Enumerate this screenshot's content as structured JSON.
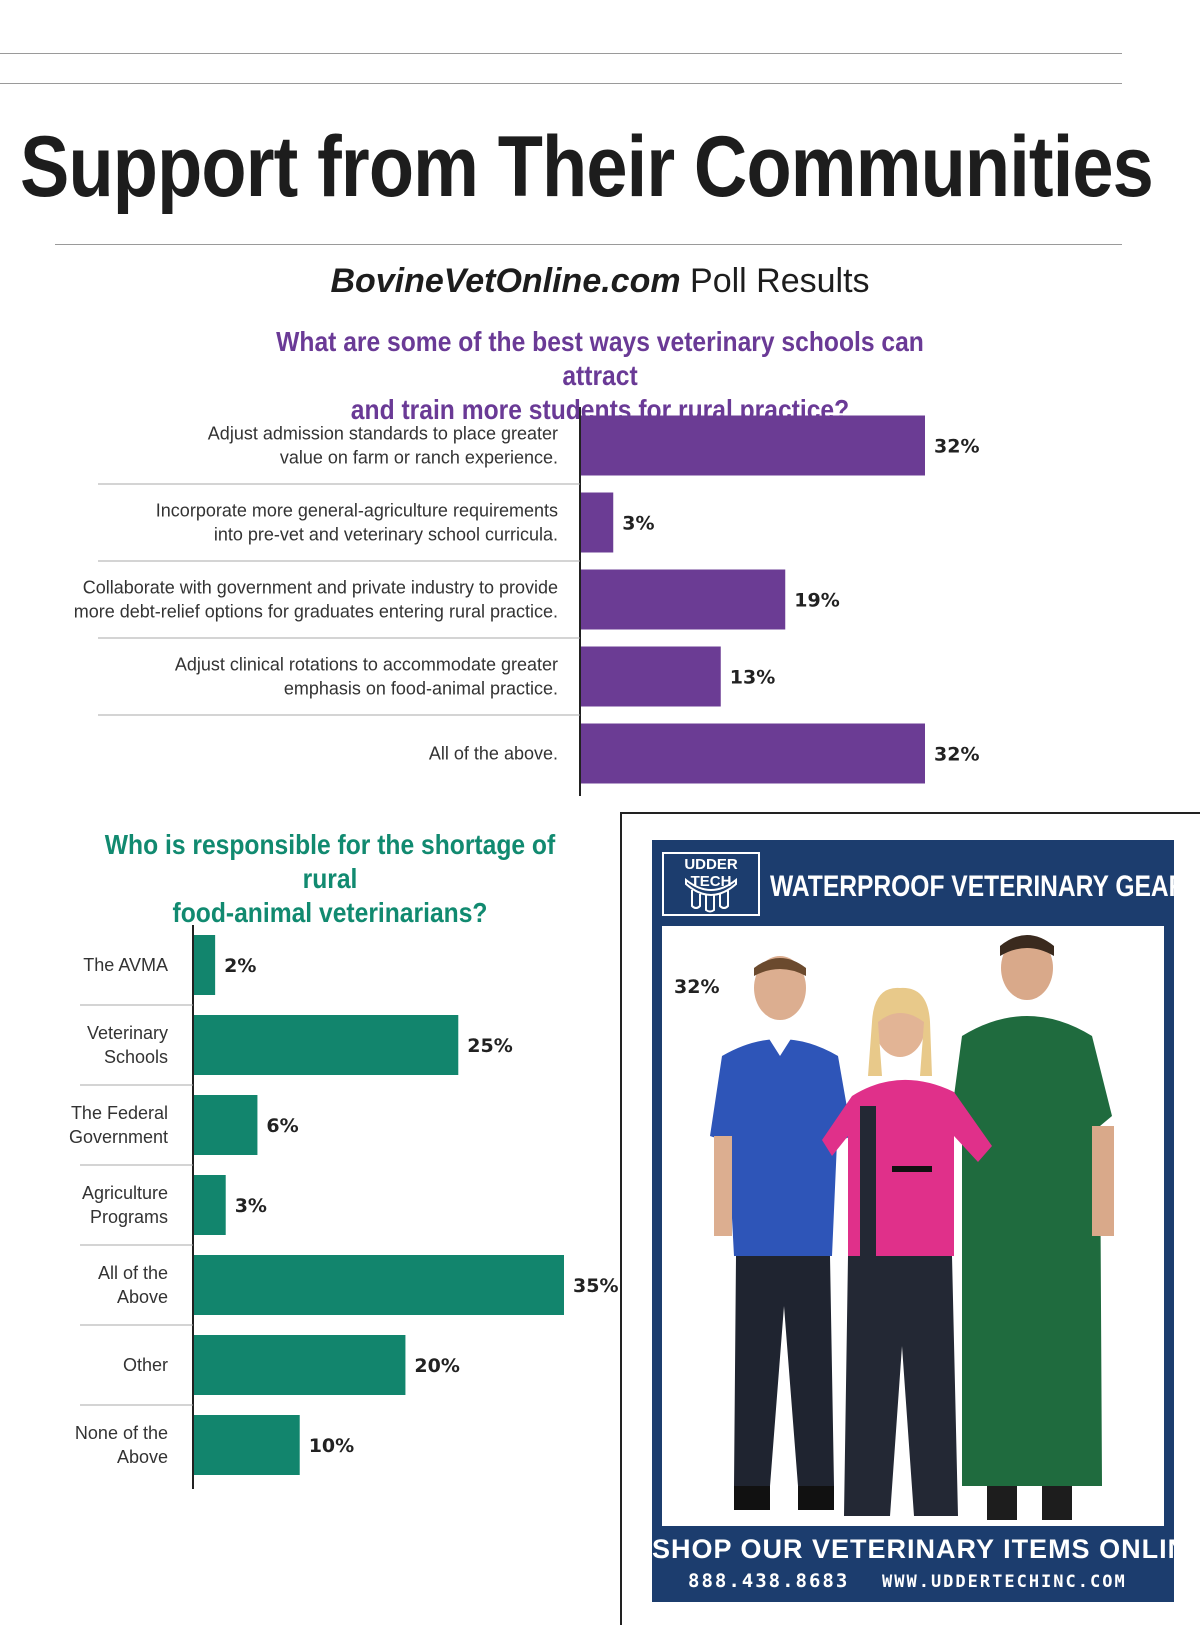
{
  "page": {
    "title": "Support from Their Communities",
    "poll_brand": "BovineVetOnline.com",
    "poll_suffix": " Poll Results"
  },
  "chart_data": [
    {
      "type": "bar",
      "orientation": "horizontal",
      "title": "What are some of the best ways veterinary schools can attract and train more students for rural practice?",
      "title_lines": [
        "What are some of the best ways veterinary schools can attract",
        "and train more students for rural practice?"
      ],
      "categories": [
        [
          "Adjust admission standards to place greater",
          "value on farm or ranch experience."
        ],
        [
          "Incorporate more general-agriculture requirements",
          "into pre-vet and veterinary school curricula."
        ],
        [
          "Collaborate with government and private industry to provide",
          "more debt-relief options for graduates entering rural practice."
        ],
        [
          "Adjust clinical rotations to accommodate greater",
          "emphasis on food-animal practice."
        ],
        [
          "All of the above."
        ]
      ],
      "values": [
        32,
        3,
        19,
        13,
        32
      ],
      "value_labels": [
        "32%",
        "3%",
        "19%",
        "13%",
        "32%"
      ],
      "unit": "%",
      "xlim": [
        0,
        32
      ],
      "color": "#6b3c94"
    },
    {
      "type": "bar",
      "orientation": "horizontal",
      "title": "Who is responsible for the shortage of rural food-animal veterinarians?",
      "title_lines": [
        "Who is responsible for the shortage of rural",
        "food-animal veterinarians?"
      ],
      "categories": [
        [
          "The AVMA"
        ],
        [
          "Veterinary",
          "Schools"
        ],
        [
          "The Federal",
          "Government"
        ],
        [
          "Agriculture",
          "Programs"
        ],
        [
          "All of the",
          "Above"
        ],
        [
          "Other"
        ],
        [
          "None of the",
          "Above"
        ]
      ],
      "values": [
        2,
        25,
        6,
        3,
        35,
        20,
        10
      ],
      "value_labels": [
        "2%",
        "25%",
        "6%",
        "3%",
        "35%",
        "20%",
        "10%"
      ],
      "unit": "%",
      "xlim": [
        0,
        35
      ],
      "color": "#12856d"
    }
  ],
  "ad": {
    "logo_text": "UDDER TECH",
    "headline": "WATERPROOF VETERINARY GEAR",
    "stray_label": "32%",
    "shop_text": "SHOP OUR VETERINARY ITEMS ONLINE",
    "phone": "888.438.8683",
    "url": "WWW.UDDERTECHINC.COM",
    "background_color": "#1c3d6e"
  }
}
